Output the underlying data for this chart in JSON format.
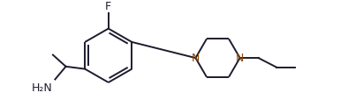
{
  "bg_color": "#ffffff",
  "line_color": "#1c1c2e",
  "N_color": "#8B4500",
  "label_color": "#1c1c2e",
  "lw": 1.4,
  "fs": 8.0,
  "fig_w": 3.85,
  "fig_h": 1.22,
  "dpi": 100,
  "xlim": [
    -0.5,
    10.5
  ],
  "ylim": [
    -1.55,
    1.65
  ]
}
